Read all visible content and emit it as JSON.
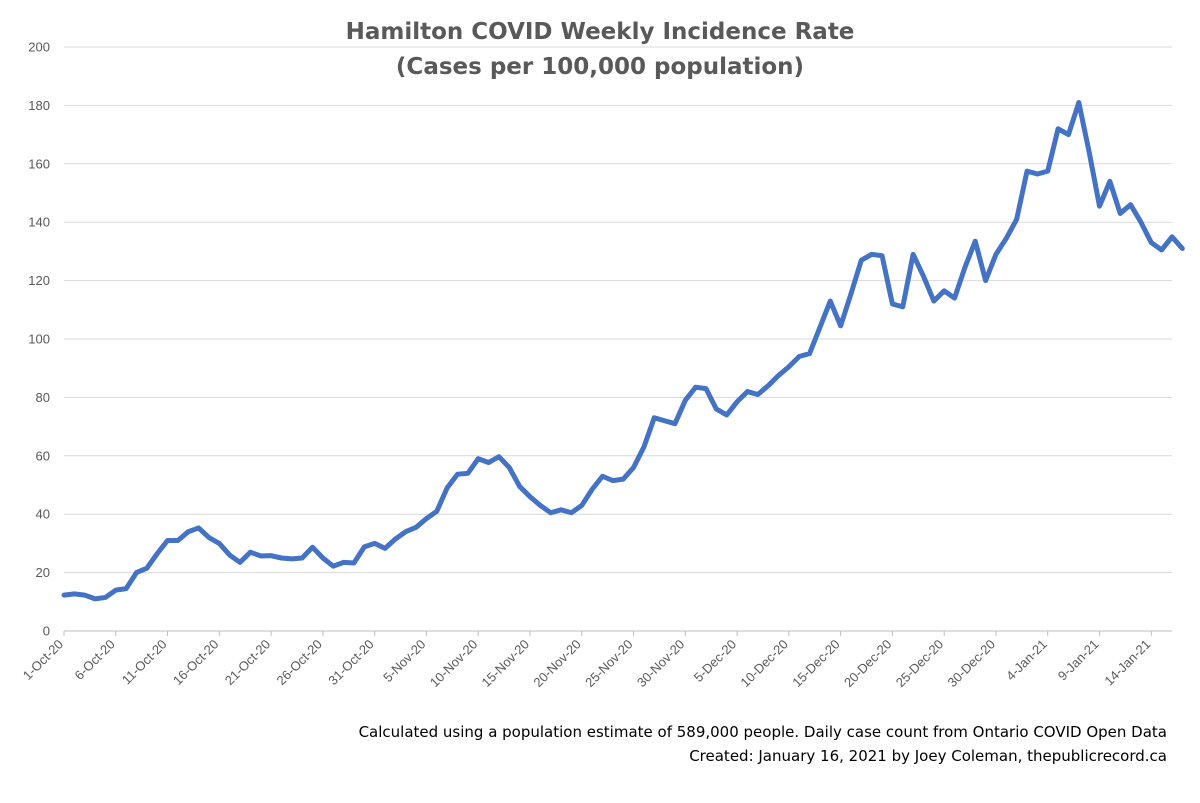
{
  "chart_data": {
    "type": "line",
    "title": "Hamilton COVID Weekly Incidence Rate",
    "subtitle": "(Cases per 100,000 population)",
    "xlabel": "",
    "ylabel": "",
    "ylim": [
      0,
      200
    ],
    "yticks": [
      "0",
      "20",
      "40",
      "60",
      "80",
      "100",
      "120",
      "140",
      "160",
      "180",
      "200"
    ],
    "grid": true,
    "legend": "none",
    "x_tick_labels": [
      "1-Oct-20",
      "6-Oct-20",
      "11-Oct-20",
      "16-Oct-20",
      "21-Oct-20",
      "26-Oct-20",
      "31-Oct-20",
      "5-Nov-20",
      "10-Nov-20",
      "15-Nov-20",
      "20-Nov-20",
      "25-Nov-20",
      "30-Nov-20",
      "5-Dec-20",
      "10-Dec-20",
      "15-Dec-20",
      "20-Dec-20",
      "25-Dec-20",
      "30-Dec-20",
      "4-Jan-21",
      "9-Jan-21",
      "14-Jan-21"
    ],
    "x_start": "2020-10-01",
    "x_end": "2021-01-16",
    "line_color": "#4472c4",
    "series": [
      {
        "values": [
          12.3,
          12.7,
          12.3,
          11.0,
          11.5,
          14.0,
          14.5,
          20.0,
          21.5,
          26.5,
          31.0,
          31.0,
          34.0,
          35.3,
          32.0,
          30.0,
          26.0,
          23.5,
          27.0,
          25.7,
          25.8,
          25.0,
          24.7,
          25.0,
          28.7,
          25.0,
          22.2,
          23.5,
          23.3,
          28.8,
          30.0,
          28.3,
          31.5,
          34.0,
          35.5,
          38.5,
          41.0,
          49.0,
          53.7,
          54.0,
          59.0,
          57.7,
          59.7,
          56.0,
          49.5,
          46.0,
          43.0,
          40.5,
          41.5,
          40.5,
          43.0,
          48.5,
          53.0,
          51.5,
          52.0,
          56.0,
          63.0,
          73.0,
          72.0,
          71.0,
          79.0,
          83.5,
          83.0,
          76.0,
          74.0,
          78.5,
          82.0,
          81.0,
          84.0,
          87.5,
          90.5,
          94.0,
          95.0,
          104.0,
          113.0,
          104.5,
          115.5,
          127.0,
          129.0,
          128.5,
          112.0,
          111.0,
          129.0,
          121.5,
          113.0,
          116.5,
          114.0,
          124.5,
          133.5,
          120.0,
          129.0,
          134.5,
          141.0,
          157.5,
          156.5,
          157.5,
          172.0,
          170.0,
          181.0,
          164.0,
          145.5,
          154.0,
          143.0,
          146.0,
          140.0,
          133.0,
          130.5,
          135.0,
          131.0
        ]
      }
    ]
  },
  "footnote": {
    "line1": "Calculated using a population estimate of 589,000 people. Daily case count from Ontario COVID Open Data",
    "line2": "Created: January 16, 2021 by Joey Coleman, thepublicrecord.ca"
  }
}
